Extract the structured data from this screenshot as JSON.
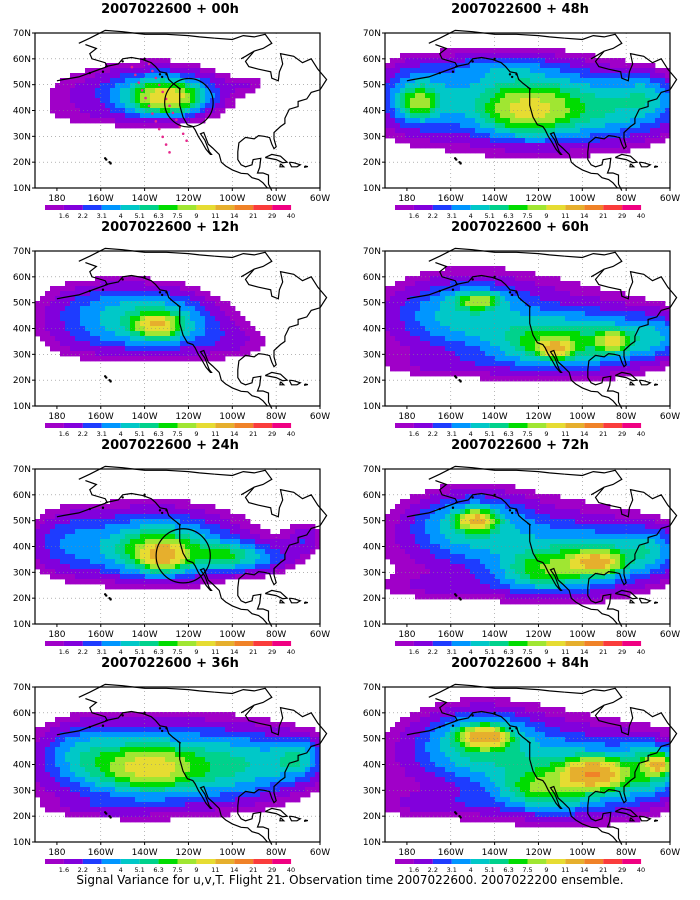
{
  "panels": [
    {
      "title": "2007022600 + 00h",
      "blobs": [
        [
          0.1,
          0.4,
          0.18,
          0.18,
          0.5
        ],
        [
          0.38,
          0.37,
          0.34,
          0.25,
          1.3
        ],
        [
          0.46,
          0.39,
          0.2,
          0.15,
          2.4
        ],
        [
          0.46,
          0.42,
          0.11,
          0.09,
          5.0
        ],
        [
          0.76,
          0.33,
          0.07,
          0.06,
          0.8
        ],
        [
          0.2,
          0.55,
          0.3,
          0.08,
          0.4
        ]
      ],
      "circles": [
        [
          0.54,
          0.45,
          0.085
        ]
      ],
      "dots": true
    },
    {
      "title": "2007022600 + 48h",
      "blobs": [
        [
          0.48,
          0.48,
          0.62,
          0.4,
          1.3
        ],
        [
          0.45,
          0.42,
          0.34,
          0.26,
          2.3
        ],
        [
          0.5,
          0.5,
          0.14,
          0.14,
          3.8
        ],
        [
          0.78,
          0.5,
          0.26,
          0.2,
          2.0
        ],
        [
          0.92,
          0.4,
          0.1,
          0.14,
          1.6
        ],
        [
          0.1,
          0.4,
          0.13,
          0.22,
          1.8
        ],
        [
          0.12,
          0.45,
          0.06,
          0.09,
          3.2
        ],
        [
          0.4,
          0.22,
          0.16,
          0.08,
          1.0
        ]
      ],
      "circles": [],
      "dots": false
    },
    {
      "title": "2007022600 + 12h",
      "blobs": [
        [
          0.15,
          0.5,
          0.2,
          0.26,
          1.0
        ],
        [
          0.38,
          0.42,
          0.34,
          0.27,
          1.5
        ],
        [
          0.42,
          0.46,
          0.2,
          0.17,
          2.6
        ],
        [
          0.43,
          0.48,
          0.07,
          0.07,
          5.0
        ],
        [
          0.7,
          0.6,
          0.2,
          0.15,
          1.0
        ],
        [
          0.22,
          0.3,
          0.24,
          0.14,
          0.5
        ]
      ],
      "circles": [],
      "dots": false
    },
    {
      "title": "2007022600 + 60h",
      "blobs": [
        [
          0.48,
          0.48,
          0.64,
          0.42,
          1.5
        ],
        [
          0.28,
          0.4,
          0.24,
          0.22,
          2.4
        ],
        [
          0.33,
          0.32,
          0.07,
          0.05,
          3.6
        ],
        [
          0.55,
          0.6,
          0.16,
          0.14,
          2.8
        ],
        [
          0.6,
          0.63,
          0.05,
          0.05,
          5.5
        ],
        [
          0.75,
          0.58,
          0.2,
          0.18,
          2.6
        ],
        [
          0.8,
          0.58,
          0.05,
          0.06,
          4.5
        ],
        [
          0.95,
          0.55,
          0.1,
          0.14,
          1.8
        ],
        [
          0.2,
          0.74,
          0.3,
          0.08,
          0.6
        ]
      ],
      "circles": [],
      "dots": false
    },
    {
      "title": "2007022600 + 24h",
      "blobs": [
        [
          0.4,
          0.46,
          0.48,
          0.31,
          1.3
        ],
        [
          0.42,
          0.5,
          0.3,
          0.23,
          2.2
        ],
        [
          0.44,
          0.54,
          0.14,
          0.13,
          3.2
        ],
        [
          0.45,
          0.56,
          0.06,
          0.07,
          5.8
        ],
        [
          0.66,
          0.56,
          0.1,
          0.08,
          2.6
        ],
        [
          0.1,
          0.48,
          0.12,
          0.22,
          1.0
        ],
        [
          0.8,
          0.58,
          0.13,
          0.1,
          1.6
        ],
        [
          0.95,
          0.45,
          0.07,
          0.1,
          1.4
        ]
      ],
      "circles": [
        [
          0.52,
          0.56,
          0.095
        ]
      ],
      "dots": false
    },
    {
      "title": "2007022600 + 72h",
      "blobs": [
        [
          0.48,
          0.5,
          0.64,
          0.42,
          1.6
        ],
        [
          0.3,
          0.36,
          0.2,
          0.2,
          2.6
        ],
        [
          0.32,
          0.33,
          0.06,
          0.06,
          6.0
        ],
        [
          0.7,
          0.58,
          0.24,
          0.2,
          2.6
        ],
        [
          0.74,
          0.6,
          0.08,
          0.07,
          6.5
        ],
        [
          0.55,
          0.66,
          0.14,
          0.12,
          2.6
        ],
        [
          0.93,
          0.52,
          0.1,
          0.14,
          2.0
        ],
        [
          0.18,
          0.76,
          0.26,
          0.08,
          0.7
        ]
      ],
      "circles": [],
      "dots": false
    },
    {
      "title": "2007022600 + 36h",
      "blobs": [
        [
          0.45,
          0.48,
          0.62,
          0.4,
          1.5
        ],
        [
          0.42,
          0.52,
          0.34,
          0.24,
          2.4
        ],
        [
          0.4,
          0.52,
          0.14,
          0.12,
          4.0
        ],
        [
          0.76,
          0.5,
          0.24,
          0.2,
          1.8
        ],
        [
          0.92,
          0.45,
          0.08,
          0.12,
          2.0
        ],
        [
          0.18,
          0.42,
          0.14,
          0.18,
          1.4
        ],
        [
          0.22,
          0.78,
          0.2,
          0.06,
          0.6
        ]
      ],
      "circles": [],
      "dots": false
    },
    {
      "title": "2007022600 + 84h",
      "blobs": [
        [
          0.48,
          0.5,
          0.66,
          0.44,
          1.7
        ],
        [
          0.33,
          0.36,
          0.2,
          0.2,
          3.0
        ],
        [
          0.35,
          0.32,
          0.07,
          0.06,
          8.0
        ],
        [
          0.72,
          0.58,
          0.26,
          0.22,
          2.8
        ],
        [
          0.73,
          0.56,
          0.09,
          0.08,
          9.0
        ],
        [
          0.55,
          0.66,
          0.14,
          0.12,
          2.8
        ],
        [
          0.93,
          0.52,
          0.1,
          0.16,
          2.4
        ],
        [
          0.96,
          0.5,
          0.04,
          0.06,
          6.0
        ],
        [
          0.18,
          0.76,
          0.24,
          0.08,
          0.8
        ]
      ],
      "circles": [],
      "dots": false
    }
  ],
  "axes": {
    "lat_labels": [
      "70N",
      "60N",
      "50N",
      "40N",
      "30N",
      "20N",
      "10N"
    ],
    "lon_labels": [
      "180",
      "160W",
      "140W",
      "120W",
      "100W",
      "80W",
      "60W"
    ],
    "lat_range": [
      10,
      70
    ],
    "lon_range": [
      -190,
      -60
    ]
  },
  "colorbar": {
    "labels": [
      "1.6",
      "2.2",
      "3.1",
      "4",
      "5.1",
      "6.3",
      "7.5",
      "9",
      "11",
      "14",
      "21",
      "29",
      "40"
    ],
    "colors": [
      "#a000c8",
      "#8200dc",
      "#1e3cff",
      "#0096ff",
      "#00c8c8",
      "#00d28c",
      "#00dc00",
      "#a0e632",
      "#e6dc32",
      "#e6af2d",
      "#f08228",
      "#fa3c3c",
      "#f00082"
    ]
  },
  "caption": "Signal Variance for u,v,T. Flight 21. Observation time 2007022600. 2007022200 ensemble."
}
